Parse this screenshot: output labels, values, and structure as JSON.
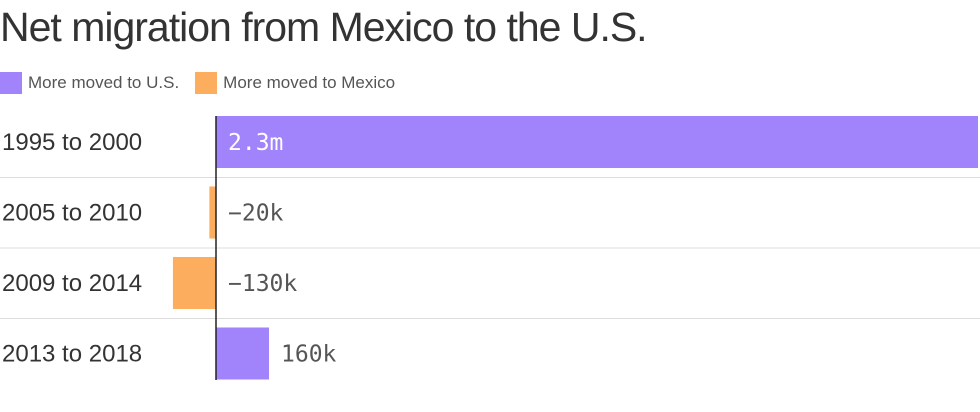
{
  "title": "Net migration from Mexico to the U.S.",
  "legend": [
    {
      "label": "More moved to U.S.",
      "color": "#a183fb"
    },
    {
      "label": "More moved to Mexico",
      "color": "#fdad5e"
    }
  ],
  "chart_data": {
    "type": "bar",
    "orientation": "horizontal",
    "title": "Net migration from Mexico to the U.S.",
    "xlabel": "",
    "ylabel": "",
    "categories": [
      "1995 to 2000",
      "2005 to 2010",
      "2009 to 2014",
      "2013 to 2018"
    ],
    "values": [
      2300000,
      -20000,
      -130000,
      160000
    ],
    "value_labels": [
      "2.3m",
      "−20k",
      "−130k",
      "160k"
    ],
    "xlim": [
      -650000,
      2300000
    ],
    "grid": false,
    "legend_position": "top-left",
    "colors": {
      "positive": "#a183fb",
      "negative": "#fdad5e"
    }
  }
}
